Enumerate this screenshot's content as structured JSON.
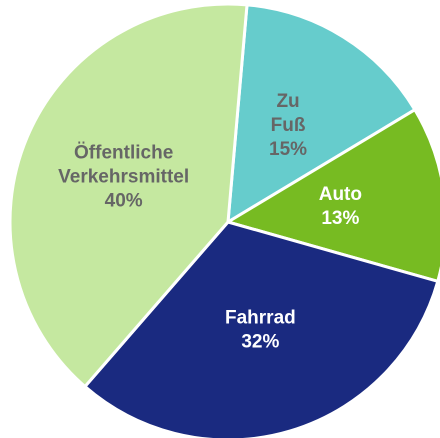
{
  "chart_data": {
    "type": "pie",
    "categories": [
      "Zu Fuß",
      "Auto",
      "Fahrrad",
      "Öffentliche Verkehrsmittel"
    ],
    "values": [
      15,
      13,
      32,
      40
    ],
    "value_labels": [
      "15%",
      "13%",
      "32%",
      "40%"
    ],
    "colors": [
      "#66cccc",
      "#77bb22",
      "#1a2a80",
      "#c5e8a0"
    ],
    "label_colors": [
      "#666666",
      "#ffffff",
      "#ffffff",
      "#666666"
    ]
  }
}
